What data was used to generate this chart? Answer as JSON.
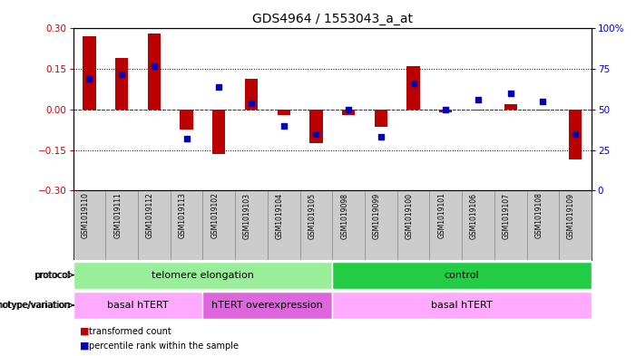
{
  "title": "GDS4964 / 1553043_a_at",
  "samples": [
    "GSM1019110",
    "GSM1019111",
    "GSM1019112",
    "GSM1019113",
    "GSM1019102",
    "GSM1019103",
    "GSM1019104",
    "GSM1019105",
    "GSM1019098",
    "GSM1019099",
    "GSM1019100",
    "GSM1019101",
    "GSM1019106",
    "GSM1019107",
    "GSM1019108",
    "GSM1019109"
  ],
  "red_values": [
    0.27,
    0.19,
    0.28,
    -0.075,
    -0.165,
    0.115,
    -0.02,
    -0.125,
    -0.02,
    -0.065,
    0.16,
    -0.01,
    -0.005,
    0.02,
    -0.005,
    -0.185
  ],
  "blue_pct": [
    69,
    72,
    77,
    32,
    64,
    54,
    40,
    35,
    50,
    33,
    66,
    50,
    56,
    60,
    55,
    35
  ],
  "ylim": [
    -0.3,
    0.3
  ],
  "yticks_left": [
    -0.3,
    -0.15,
    0,
    0.15,
    0.3
  ],
  "yticks_right": [
    0,
    25,
    50,
    75,
    100
  ],
  "protocol_groups": [
    {
      "label": "telomere elongation",
      "start": 0,
      "end": 8,
      "color": "#99EE99"
    },
    {
      "label": "control",
      "start": 8,
      "end": 16,
      "color": "#22CC44"
    }
  ],
  "genotype_groups": [
    {
      "label": "basal hTERT",
      "start": 0,
      "end": 4,
      "color": "#FFAAFF"
    },
    {
      "label": "hTERT overexpression",
      "start": 4,
      "end": 8,
      "color": "#DD66DD"
    },
    {
      "label": "basal hTERT",
      "start": 8,
      "end": 16,
      "color": "#FFAAFF"
    }
  ],
  "red_color": "#BB0000",
  "blue_color": "#0000BB",
  "bar_width": 0.4,
  "blue_marker_size": 5,
  "ylabel_left_color": "#CC0000",
  "ylabel_right_color": "#0000CC"
}
